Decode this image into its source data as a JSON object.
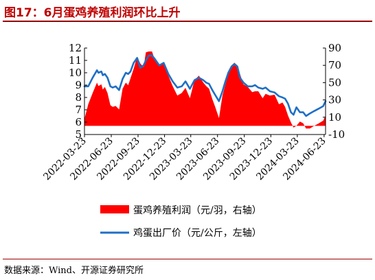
{
  "title": "图17：6月蛋鸡养殖利润环比上升",
  "source": "数据来源：Wind、开源证券研究所",
  "chart_data": {
    "type": "line+area",
    "x_tick_labels": [
      "2022-03-23",
      "2022-06-23",
      "2022-09-23",
      "2022-12-23",
      "2023-03-23",
      "2023-06-23",
      "2023-09-23",
      "2023-12-23",
      "2024-03-23",
      "2024-06-23"
    ],
    "x_range": [
      "2022-03-23",
      "2024-06-28"
    ],
    "left_axis": {
      "ylim": [
        5,
        12
      ],
      "ticks": [
        5,
        6,
        7,
        8,
        9,
        10,
        11,
        12
      ]
    },
    "right_axis": {
      "ylim": [
        -10,
        90
      ],
      "ticks": [
        -10,
        10,
        30,
        50,
        70,
        90
      ]
    },
    "grid": false,
    "legend_position": "bottom",
    "series": [
      {
        "name": "蛋鸡养殖利润（元/羽，右轴）",
        "type": "area",
        "axis": "right",
        "color": "#ff0000",
        "x": [
          "2022-03-23",
          "2022-04-05",
          "2022-04-20",
          "2022-05-05",
          "2022-05-10",
          "2022-05-20",
          "2022-05-25",
          "2022-06-01",
          "2022-06-10",
          "2022-06-20",
          "2022-06-28",
          "2022-07-08",
          "2022-07-20",
          "2022-08-01",
          "2022-08-12",
          "2022-08-20",
          "2022-08-28",
          "2022-09-08",
          "2022-09-20",
          "2022-10-01",
          "2022-10-12",
          "2022-10-20",
          "2022-10-30",
          "2022-11-10",
          "2022-11-20",
          "2022-12-05",
          "2022-12-20",
          "2023-01-05",
          "2023-01-20",
          "2023-02-05",
          "2023-02-20",
          "2023-03-05",
          "2023-03-20",
          "2023-04-05",
          "2023-04-20",
          "2023-05-05",
          "2023-05-15",
          "2023-05-25",
          "2023-06-05",
          "2023-06-15",
          "2023-06-28",
          "2023-07-10",
          "2023-07-20",
          "2023-07-30",
          "2023-08-10",
          "2023-08-20",
          "2023-08-30",
          "2023-09-08",
          "2023-09-20",
          "2023-10-05",
          "2023-10-20",
          "2023-10-30",
          "2023-11-10",
          "2023-11-25",
          "2023-12-05",
          "2023-12-20",
          "2024-01-05",
          "2024-01-20",
          "2024-02-01",
          "2024-02-10",
          "2024-02-20",
          "2024-03-01",
          "2024-03-10",
          "2024-03-20",
          "2024-04-01",
          "2024-04-12",
          "2024-04-22",
          "2024-05-05",
          "2024-05-20",
          "2024-06-05",
          "2024-06-20",
          "2024-06-28"
        ],
        "values": [
          8,
          25,
          38,
          50,
          46,
          48,
          42,
          45,
          38,
          24,
          22,
          23,
          19,
          43,
          50,
          47,
          55,
          66,
          80,
          72,
          68,
          85,
          86,
          86,
          76,
          70,
          73,
          58,
          46,
          35,
          38,
          44,
          32,
          53,
          58,
          50,
          46,
          43,
          31,
          22,
          9,
          35,
          48,
          60,
          70,
          73,
          70,
          60,
          48,
          45,
          39,
          40,
          40,
          32,
          37,
          35,
          36,
          25,
          27,
          22,
          12,
          4,
          -2,
          0,
          5,
          3,
          -3,
          -3,
          0,
          3,
          6,
          12
        ]
      },
      {
        "name": "鸡蛋出厂价（元/公斤，左轴）",
        "type": "line",
        "axis": "left",
        "color": "#1f6fc5",
        "x": [
          "2022-03-23",
          "2022-04-05",
          "2022-04-20",
          "2022-05-05",
          "2022-05-10",
          "2022-05-20",
          "2022-05-25",
          "2022-06-01",
          "2022-06-10",
          "2022-06-20",
          "2022-06-28",
          "2022-07-08",
          "2022-07-20",
          "2022-08-01",
          "2022-08-12",
          "2022-08-20",
          "2022-08-28",
          "2022-09-08",
          "2022-09-20",
          "2022-10-01",
          "2022-10-12",
          "2022-10-20",
          "2022-10-30",
          "2022-11-10",
          "2022-11-20",
          "2022-12-05",
          "2022-12-20",
          "2023-01-05",
          "2023-01-20",
          "2023-02-05",
          "2023-02-20",
          "2023-03-05",
          "2023-03-20",
          "2023-04-05",
          "2023-04-20",
          "2023-05-05",
          "2023-05-15",
          "2023-05-25",
          "2023-06-05",
          "2023-06-15",
          "2023-06-28",
          "2023-07-10",
          "2023-07-20",
          "2023-07-30",
          "2023-08-10",
          "2023-08-20",
          "2023-08-30",
          "2023-09-08",
          "2023-09-20",
          "2023-10-05",
          "2023-10-20",
          "2023-10-30",
          "2023-11-10",
          "2023-11-25",
          "2023-12-05",
          "2023-12-20",
          "2024-01-05",
          "2024-01-20",
          "2024-02-01",
          "2024-02-10",
          "2024-02-20",
          "2024-03-01",
          "2024-03-10",
          "2024-03-20",
          "2024-04-01",
          "2024-04-12",
          "2024-04-22",
          "2024-05-05",
          "2024-05-20",
          "2024-06-05",
          "2024-06-20",
          "2024-06-28"
        ],
        "values": [
          8.9,
          8.9,
          9.6,
          10.2,
          10.0,
          10.1,
          9.8,
          9.9,
          9.6,
          8.9,
          8.8,
          8.9,
          8.6,
          9.5,
          10.0,
          9.9,
          10.1,
          10.8,
          11.2,
          10.4,
          10.6,
          11.0,
          11.4,
          11.4,
          11.1,
          10.6,
          10.8,
          9.9,
          9.3,
          8.8,
          8.9,
          9.3,
          8.7,
          9.4,
          9.6,
          9.4,
          9.2,
          9.1,
          8.6,
          8.2,
          7.7,
          8.5,
          9.3,
          10.0,
          10.5,
          10.7,
          10.5,
          9.6,
          9.2,
          8.9,
          8.9,
          9.0,
          8.8,
          8.7,
          8.8,
          8.5,
          8.4,
          8.1,
          8.0,
          7.9,
          7.5,
          6.8,
          6.6,
          7.2,
          6.8,
          6.8,
          6.5,
          6.7,
          6.9,
          7.1,
          7.3,
          7.7
        ]
      }
    ]
  }
}
